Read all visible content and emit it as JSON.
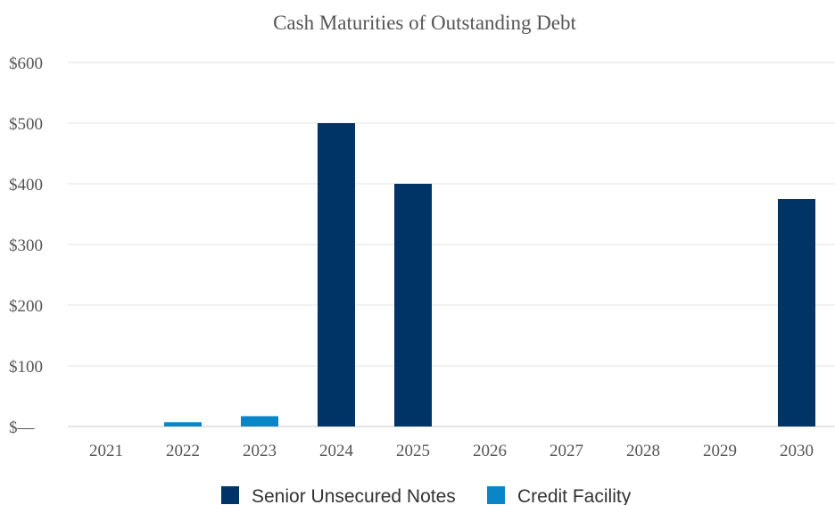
{
  "chart_data": {
    "type": "bar",
    "title": "Cash Maturities of Outstanding Debt",
    "xlabel": "",
    "ylabel": "",
    "categories": [
      "2021",
      "2022",
      "2023",
      "2024",
      "2025",
      "2026",
      "2027",
      "2028",
      "2029",
      "2030"
    ],
    "series": [
      {
        "name": "Senior Unsecured Notes",
        "color": "#003366",
        "values": [
          0,
          0,
          0,
          500,
          400,
          0,
          0,
          0,
          0,
          375
        ]
      },
      {
        "name": "Credit Facility",
        "color": "#0a85c8",
        "values": [
          0,
          7,
          17,
          0,
          0,
          0,
          0,
          0,
          0,
          0
        ]
      }
    ],
    "stacked": true,
    "ylim": [
      0,
      600
    ],
    "yticks": [
      0,
      100,
      200,
      300,
      400,
      500,
      600
    ],
    "ytick_labels": [
      "$—",
      "$100",
      "$200",
      "$300",
      "$400",
      "$500",
      "$600"
    ],
    "grid": true,
    "legend_position": "bottom-center"
  }
}
